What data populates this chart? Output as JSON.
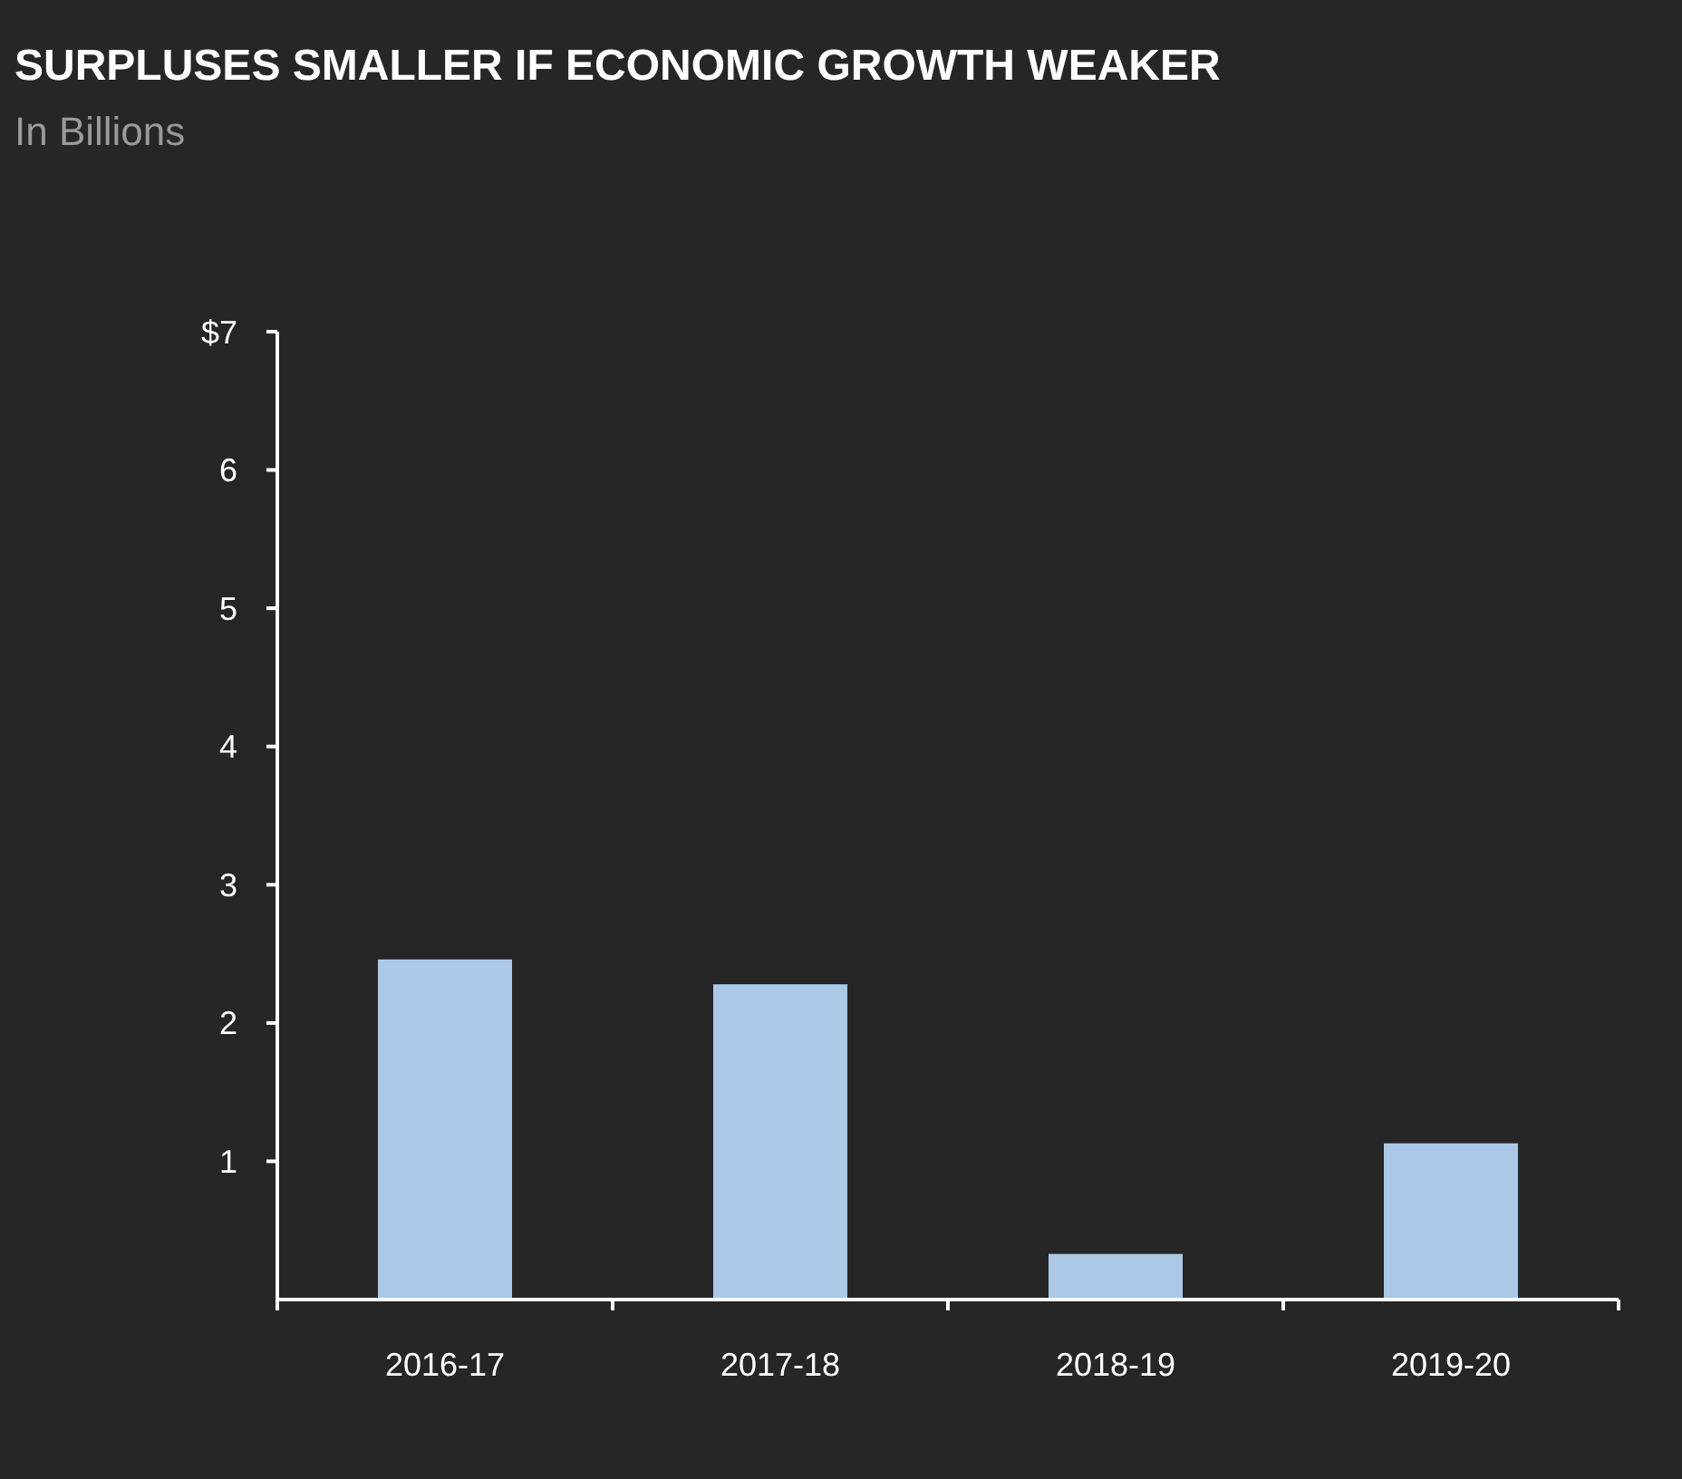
{
  "chart_data": {
    "type": "bar",
    "title": "SURPLUSES SMALLER IF ECONOMIC GROWTH WEAKER",
    "subtitle": "In Billions",
    "categories": [
      "2016-17",
      "2017-18",
      "2018-19",
      "2019-20"
    ],
    "values": [
      2.46,
      2.28,
      0.33,
      1.13
    ],
    "color": "#abc9e7",
    "ylim": [
      0,
      7
    ],
    "yticks": [
      1,
      2,
      3,
      4,
      5,
      6,
      {
        "value": 7,
        "label": "$7"
      }
    ],
    "grid": false
  }
}
